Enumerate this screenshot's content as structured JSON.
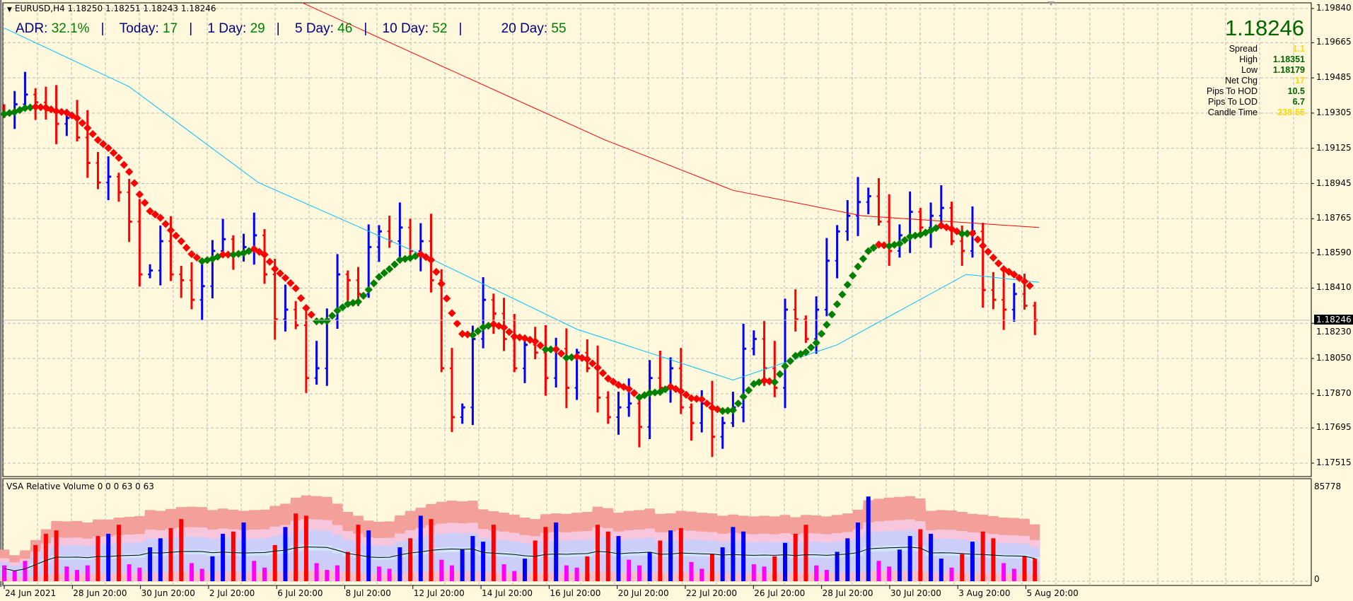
{
  "header": {
    "symbol_line": "EURUSD,H4  1.18250 1.18251 1.18243 1.18246",
    "adr": [
      {
        "label": "ADR:",
        "value": "32.1%"
      },
      {
        "label": "Today:",
        "value": "17"
      },
      {
        "label": "1 Day:",
        "value": "29"
      },
      {
        "label": "5 Day:",
        "value": "46"
      },
      {
        "label": "10 Day:",
        "value": "52"
      },
      {
        "label": "20 Day:",
        "value": "55"
      }
    ],
    "separator": "|"
  },
  "info_panel": {
    "price": "1.18246",
    "rows": [
      {
        "label": "Spread",
        "value": "1.1",
        "color": "#ffd700"
      },
      {
        "label": "High",
        "value": "1.18351",
        "color": "#006400"
      },
      {
        "label": "Low",
        "value": "1.18179",
        "color": "#006400"
      },
      {
        "label": "Net Chg",
        "value": "17",
        "color": "#ffd700"
      },
      {
        "label": "Pips To HOD",
        "value": "10.5",
        "color": "#006400"
      },
      {
        "label": "Pips To LOD",
        "value": "6.7",
        "color": "#006400"
      },
      {
        "label": "Candle Time",
        "value": "238:55",
        "color": "#ffd700"
      }
    ]
  },
  "chart_data": {
    "type": "ohlc",
    "symbol": "EURUSD",
    "timeframe": "H4",
    "ylim": [
      1.1745,
      1.1987
    ],
    "grid": true,
    "price_ticks": [
      "1.19840",
      "1.19665",
      "1.19485",
      "1.19305",
      "1.19125",
      "1.18945",
      "1.18765",
      "1.18590",
      "1.18410",
      "1.18230",
      "1.18050",
      "1.17870",
      "1.17695",
      "1.17515"
    ],
    "current_price": "1.18246",
    "x_ticks": [
      "24 Jun 2021",
      "28 Jun 20:00",
      "30 Jun 20:00",
      "2 Jul 20:00",
      "6 Jul 20:00",
      "8 Jul 20:00",
      "12 Jul 20:00",
      "14 Jul 20:00",
      "16 Jul 20:00",
      "20 Jul 20:00",
      "22 Jul 20:00",
      "26 Jul 20:00",
      "28 Jul 20:00",
      "30 Jul 20:00",
      "3 Aug 20:00",
      "5 Aug 20:00"
    ],
    "closes": [
      1.193,
      1.1935,
      1.194,
      1.1936,
      1.1932,
      1.1925,
      1.1928,
      1.1918,
      1.1905,
      1.1895,
      1.1898,
      1.189,
      1.1875,
      1.1848,
      1.185,
      1.1865,
      1.1848,
      1.1845,
      1.1835,
      1.1842,
      1.186,
      1.1866,
      1.1858,
      1.1862,
      1.1868,
      1.1848,
      1.1825,
      1.183,
      1.1822,
      1.1795,
      1.18,
      1.1825,
      1.1848,
      1.1845,
      1.1838,
      1.1862,
      1.187,
      1.1865,
      1.1872,
      1.186,
      1.1865,
      1.1845,
      1.18,
      1.1775,
      1.178,
      1.1815,
      1.1835,
      1.1828,
      1.1815,
      1.18,
      1.1812,
      1.1808,
      1.1795,
      1.181,
      1.179,
      1.1808,
      1.18,
      1.1785,
      1.1775,
      1.178,
      1.1782,
      1.177,
      1.1795,
      1.179,
      1.18,
      1.178,
      1.1772,
      1.1782,
      1.1765,
      1.1772,
      1.178,
      1.181,
      1.1815,
      1.18,
      1.179,
      1.183,
      1.1825,
      1.1815,
      1.183,
      1.1855,
      1.187,
      1.1878,
      1.1885,
      1.1888,
      1.1875,
      1.186,
      1.1868,
      1.188,
      1.1872,
      1.1878,
      1.1882,
      1.1865,
      1.186,
      1.187,
      1.184,
      1.1835,
      1.183,
      1.1838,
      1.1832,
      1.18246
    ],
    "ma_red": [
      [
        28.6,
        1.1987
      ],
      [
        41,
        1.1957
      ],
      [
        57.6,
        1.1917
      ],
      [
        70,
        1.1891
      ],
      [
        82.4,
        1.1878
      ],
      [
        99.4,
        1.1872
      ]
    ],
    "ma_cyan": [
      [
        0,
        1.1974
      ],
      [
        12,
        1.1944
      ],
      [
        24.4,
        1.1895
      ],
      [
        41,
        1.1856
      ],
      [
        55,
        1.182
      ],
      [
        70,
        1.1794
      ],
      [
        80,
        1.1812
      ],
      [
        92.4,
        1.1848
      ],
      [
        99.4,
        1.1844
      ]
    ],
    "colors": {
      "up": "#0000ff",
      "down": "#ff0000",
      "trend_up": "#008000",
      "trend_down": "#ff0000",
      "ma_red": "#ff0000",
      "ma_cyan": "#00bfff"
    },
    "volume": {
      "title": "VSA Relative Volume 0 0 0 63 0 63",
      "max_label": "85778",
      "min_label": "0",
      "ylim": [
        0,
        85778
      ],
      "values": [
        14000,
        9000,
        18000,
        32000,
        42000,
        45000,
        13000,
        10000,
        14000,
        40000,
        42000,
        50000,
        15000,
        12000,
        30000,
        38000,
        47000,
        55000,
        16000,
        11000,
        22000,
        42000,
        44000,
        52000,
        18000,
        12000,
        32000,
        48000,
        60000,
        58000,
        16000,
        10000,
        14000,
        26000,
        50000,
        45000,
        13000,
        11000,
        30000,
        38000,
        58000,
        55000,
        19000,
        14000,
        28000,
        40000,
        35000,
        50000,
        15000,
        9000,
        20000,
        36000,
        48000,
        52000,
        14000,
        12000,
        22000,
        50000,
        44000,
        40000,
        19000,
        14000,
        26000,
        36000,
        45000,
        47000,
        17000,
        11000,
        24000,
        30000,
        48000,
        44000,
        15000,
        13000,
        22000,
        34000,
        42000,
        50000,
        14000,
        10000,
        26000,
        38000,
        52000,
        75000,
        18000,
        13000,
        28000,
        40000,
        46000,
        42000,
        20000,
        12000,
        24000,
        35000,
        44000,
        38000,
        16000,
        11000,
        22000,
        20000
      ],
      "colors": {
        "low": "#ff00ff",
        "up": "#0000ff",
        "down": "#ff0000",
        "band1": "#f4a09a",
        "band2": "#f8c6dc",
        "band3": "#cccdf8",
        "band4": "#cfe6fa",
        "band5": "#f7c0c8",
        "avg": "#000000"
      }
    }
  }
}
